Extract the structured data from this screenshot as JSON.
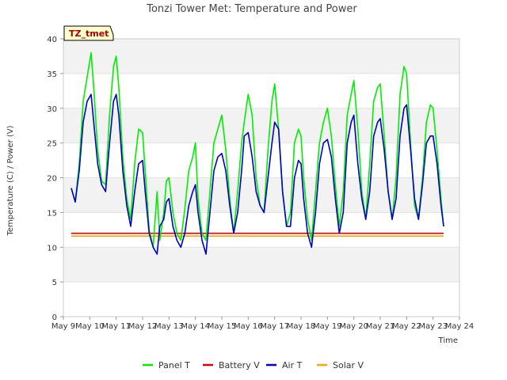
{
  "chart_data": {
    "type": "line",
    "title": "Tonzi Tower Met: Temperature and Power",
    "tag": "TZ_tmet",
    "xlabel": "Time",
    "ylabel": "Temperature (C) / Power (V)",
    "ylim": [
      0,
      40
    ],
    "yticks": [
      0,
      5,
      10,
      15,
      20,
      25,
      30,
      35,
      40
    ],
    "xlim": [
      9,
      24
    ],
    "xticks": [
      {
        "v": 9,
        "label": "May 9"
      },
      {
        "v": 10,
        "label": "May 10"
      },
      {
        "v": 11,
        "label": "May 11"
      },
      {
        "v": 12,
        "label": "May 12"
      },
      {
        "v": 13,
        "label": "May 13"
      },
      {
        "v": 14,
        "label": "May 14"
      },
      {
        "v": 15,
        "label": "May 15"
      },
      {
        "v": 16,
        "label": "May 16"
      },
      {
        "v": 17,
        "label": "May 17"
      },
      {
        "v": 18,
        "label": "May 18"
      },
      {
        "v": 19,
        "label": "May 19"
      },
      {
        "v": 20,
        "label": "May 20"
      },
      {
        "v": 21,
        "label": "May 21"
      },
      {
        "v": 22,
        "label": "May 22"
      },
      {
        "v": 23,
        "label": "May 23"
      },
      {
        "v": 24,
        "label": "May 24"
      }
    ],
    "grid": "horizontal bands",
    "legend_position": "bottom",
    "series": [
      {
        "name": "Panel T",
        "color": "#00ee00",
        "x": [
          9.3,
          9.45,
          9.6,
          9.75,
          9.9,
          10.05,
          10.15,
          10.3,
          10.45,
          10.6,
          10.75,
          10.9,
          11.0,
          11.1,
          11.25,
          11.4,
          11.55,
          11.7,
          11.85,
          12.0,
          12.1,
          12.25,
          12.4,
          12.55,
          12.65,
          12.8,
          12.9,
          13.0,
          13.15,
          13.3,
          13.45,
          13.6,
          13.75,
          13.9,
          14.0,
          14.1,
          14.25,
          14.4,
          14.55,
          14.7,
          14.85,
          15.0,
          15.15,
          15.3,
          15.45,
          15.6,
          15.75,
          15.85,
          16.0,
          16.15,
          16.3,
          16.45,
          16.6,
          16.75,
          16.9,
          17.0,
          17.15,
          17.3,
          17.45,
          17.6,
          17.75,
          17.9,
          18.0,
          18.1,
          18.25,
          18.4,
          18.55,
          18.7,
          18.85,
          19.0,
          19.15,
          19.3,
          19.45,
          19.6,
          19.75,
          19.9,
          20.0,
          20.15,
          20.3,
          20.45,
          20.6,
          20.75,
          20.9,
          21.0,
          21.15,
          21.3,
          21.45,
          21.6,
          21.75,
          21.9,
          22.0,
          22.15,
          22.3,
          22.45,
          22.6,
          22.75,
          22.9,
          23.0,
          23.15,
          23.3,
          23.4
        ],
        "values": [
          18.5,
          16.5,
          22,
          31,
          34.5,
          38,
          33,
          24,
          19.5,
          19,
          29,
          36,
          37.5,
          33,
          23,
          17,
          14,
          22,
          27,
          26.5,
          21,
          12.5,
          10,
          18,
          11,
          15,
          19.5,
          20,
          15,
          12,
          11,
          15.5,
          21,
          23,
          25,
          17,
          12,
          11,
          18,
          25,
          27,
          29,
          24,
          17,
          12,
          18,
          25,
          28,
          32,
          29,
          20,
          16,
          15,
          24,
          31,
          33.5,
          27,
          18,
          13,
          15,
          25,
          27,
          26,
          20,
          14,
          11,
          18,
          25,
          28,
          30,
          26,
          19,
          13,
          18,
          29,
          32,
          34,
          27,
          18,
          14,
          22,
          31,
          33,
          33.5,
          26,
          18,
          14,
          20,
          32,
          36,
          35,
          25,
          16,
          14,
          20,
          28,
          30.5,
          30,
          24,
          17,
          13
        ]
      },
      {
        "name": "Battery V",
        "color": "#dd0000",
        "x": [
          9.3,
          23.4
        ],
        "values": [
          12.0,
          12.0
        ]
      },
      {
        "name": "Air T",
        "color": "#0000cc",
        "x": [
          9.3,
          9.45,
          9.6,
          9.75,
          9.9,
          10.05,
          10.15,
          10.3,
          10.45,
          10.6,
          10.75,
          10.9,
          11.0,
          11.1,
          11.25,
          11.4,
          11.55,
          11.7,
          11.85,
          12.0,
          12.1,
          12.25,
          12.4,
          12.55,
          12.65,
          12.8,
          12.9,
          13.0,
          13.15,
          13.3,
          13.45,
          13.6,
          13.75,
          13.9,
          14.0,
          14.1,
          14.25,
          14.4,
          14.55,
          14.7,
          14.85,
          15.0,
          15.15,
          15.3,
          15.45,
          15.6,
          15.75,
          15.85,
          16.0,
          16.15,
          16.3,
          16.45,
          16.6,
          16.75,
          16.9,
          17.0,
          17.15,
          17.3,
          17.45,
          17.6,
          17.75,
          17.9,
          18.0,
          18.1,
          18.25,
          18.4,
          18.55,
          18.7,
          18.85,
          19.0,
          19.15,
          19.3,
          19.45,
          19.6,
          19.75,
          19.9,
          20.0,
          20.15,
          20.3,
          20.45,
          20.6,
          20.75,
          20.9,
          21.0,
          21.15,
          21.3,
          21.45,
          21.6,
          21.75,
          21.9,
          22.0,
          22.15,
          22.3,
          22.45,
          22.6,
          22.75,
          22.9,
          23.0,
          23.15,
          23.3,
          23.4
        ],
        "values": [
          18.5,
          16.5,
          21,
          28,
          31,
          32,
          28,
          22,
          19,
          18,
          25,
          31,
          32,
          29,
          21,
          16,
          13,
          18,
          22,
          22.5,
          18,
          12,
          10,
          9,
          13,
          14,
          16.5,
          17,
          13,
          11,
          10,
          12,
          16,
          18,
          19,
          15,
          11,
          9,
          15,
          21,
          23,
          23.5,
          21,
          16,
          12,
          15,
          21,
          26,
          26.5,
          23,
          18,
          16,
          15,
          20,
          25,
          28,
          27,
          18,
          13,
          13,
          20,
          22.5,
          22,
          17,
          12,
          10,
          15,
          22,
          25,
          25.5,
          23,
          17,
          12,
          15,
          25,
          28,
          29,
          22,
          17,
          14,
          18,
          26,
          28,
          28.5,
          24,
          18,
          14,
          17,
          26,
          30,
          30.5,
          24,
          17,
          14,
          19,
          25,
          26,
          26,
          22,
          16,
          13
        ]
      },
      {
        "name": "Solar V",
        "color": "#ffa500",
        "x": [
          9.3,
          23.4
        ],
        "values": [
          11.6,
          11.6
        ]
      }
    ]
  }
}
